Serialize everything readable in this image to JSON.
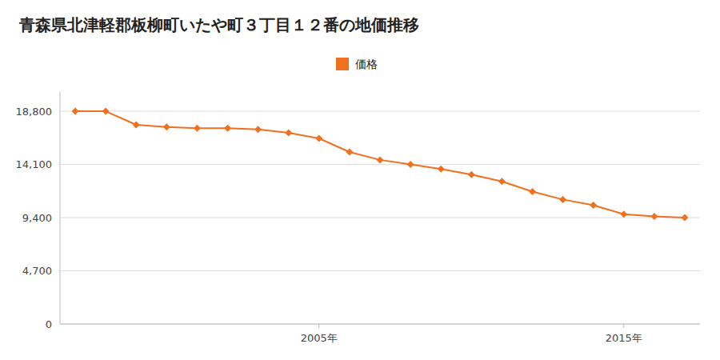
{
  "chart_data": {
    "type": "line",
    "title": "青森県北津軽郡板柳町いたや町３丁目１２番の地価推移",
    "x": [
      1997,
      1998,
      1999,
      2000,
      2001,
      2002,
      2003,
      2004,
      2005,
      2006,
      2007,
      2008,
      2009,
      2010,
      2011,
      2012,
      2013,
      2014,
      2015,
      2016,
      2017
    ],
    "series": [
      {
        "name": "価格",
        "color": "#f07020",
        "values": [
          18800,
          18800,
          17600,
          17400,
          17300,
          17300,
          17200,
          16900,
          16400,
          15200,
          14500,
          14100,
          13700,
          13200,
          12600,
          11700,
          11000,
          10500,
          9700,
          9500,
          9400
        ]
      }
    ],
    "xlim": [
      1996.5,
      2017.5
    ],
    "xticks": [
      {
        "value": 2005,
        "label": "2005年"
      },
      {
        "value": 2015,
        "label": "2015年"
      }
    ],
    "ylim": [
      0,
      20500
    ],
    "yticks": [
      0,
      {
        "value": 4700,
        "label": "4,700"
      },
      {
        "value": 9400,
        "label": "9,400"
      },
      {
        "value": 14100,
        "label": "14,100"
      },
      {
        "value": 18800,
        "label": "18,800"
      }
    ],
    "grid": true,
    "marker": "diamond",
    "legend": "top"
  }
}
